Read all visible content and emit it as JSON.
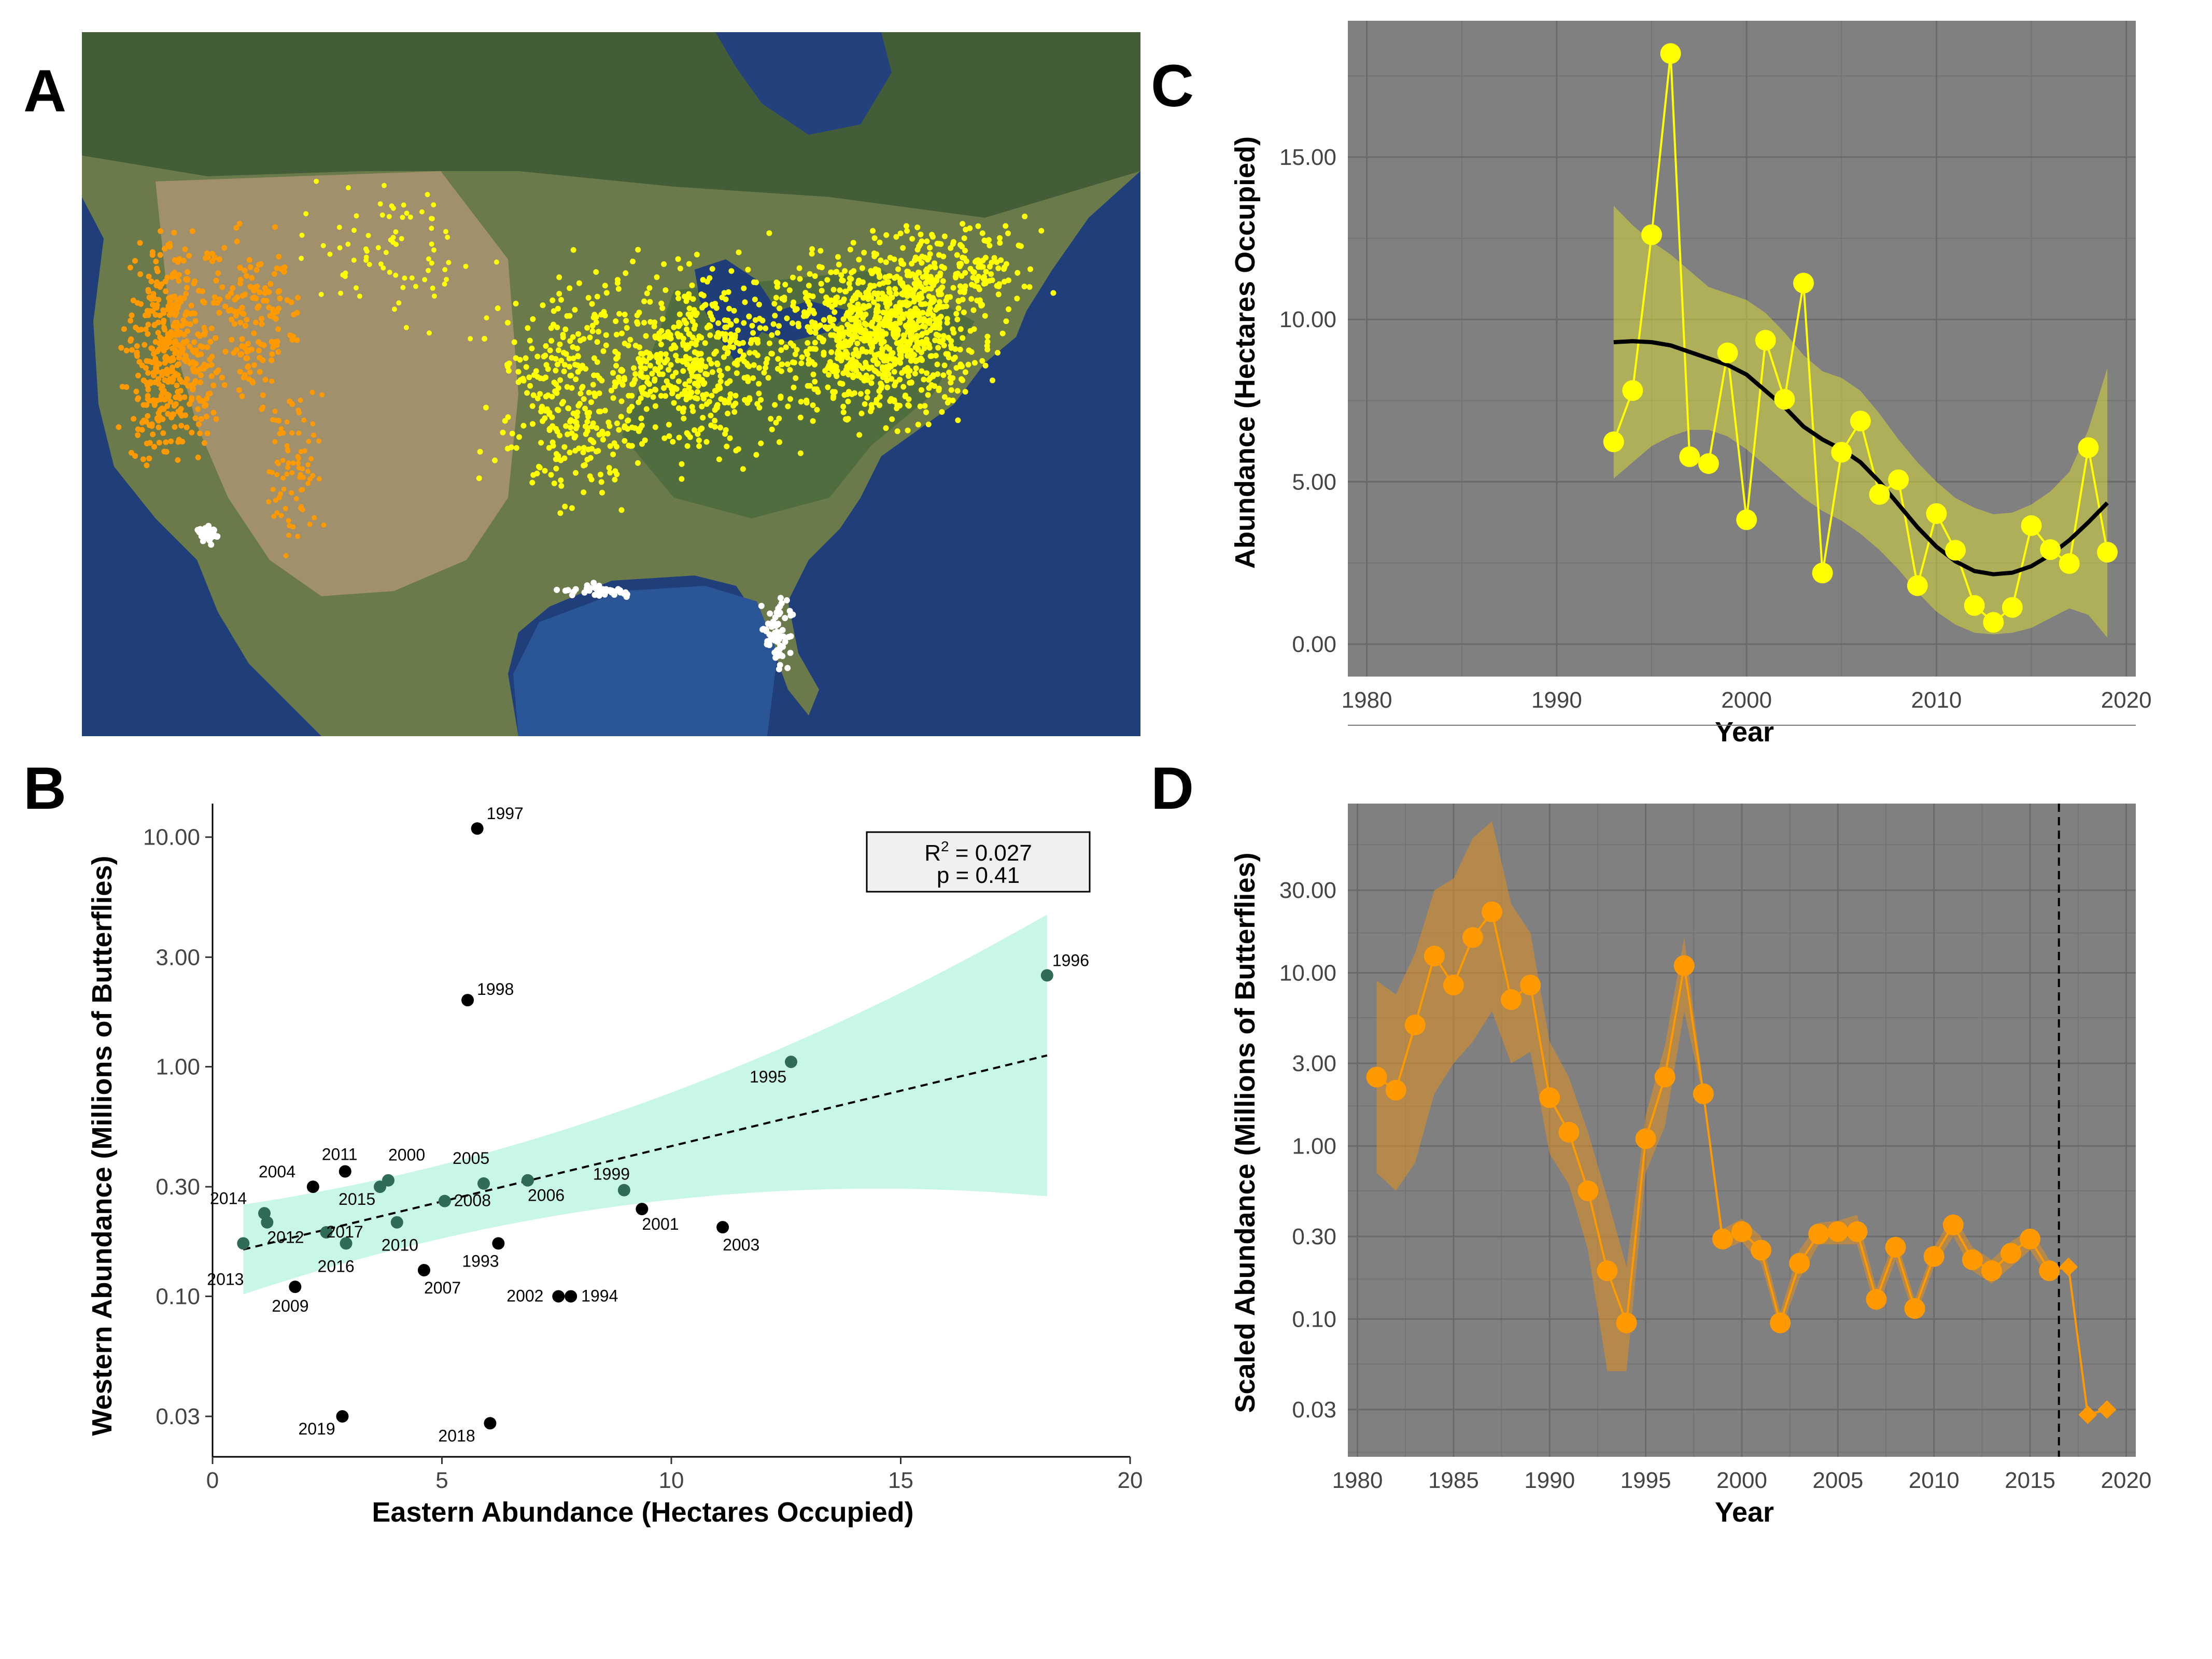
{
  "panels": {
    "a": {
      "letter": "A",
      "colors": {
        "western": "#ff9900",
        "eastern": "#ffff00",
        "coastal": "#ffffff"
      }
    },
    "b": {
      "letter": "B"
    },
    "c": {
      "letter": "C"
    },
    "d": {
      "letter": "D"
    }
  },
  "chart_data": [
    {
      "panel": "B",
      "type": "scatter",
      "xlabel": "Eastern Abundance (Hectares Occupied)",
      "ylabel": "Western Abundance (Millions of Butterflies)",
      "x_ticks": [
        0,
        5,
        10,
        15,
        20
      ],
      "y_ticks": [
        "10.00",
        "3.00",
        "1.00",
        "0.30",
        "0.10",
        "0.03"
      ],
      "y_scale": "log",
      "xlim": [
        0,
        20
      ],
      "ylim": [
        0.02,
        14
      ],
      "grid": false,
      "stats": {
        "r2_label": "R",
        "r2_sup": "2",
        "r2_value": " = 0.027",
        "p": "p = 0.41"
      },
      "fit": {
        "type": "linear",
        "x": [
          0.67,
          18.19
        ],
        "y": [
          0.16,
          1.12
        ]
      },
      "ci_color": "#c8f7e8",
      "points": [
        {
          "year": "1993",
          "x": 6.23,
          "y": 0.17
        },
        {
          "year": "1994",
          "x": 7.81,
          "y": 0.1
        },
        {
          "year": "1995",
          "x": 12.61,
          "y": 1.05
        },
        {
          "year": "1996",
          "x": 18.19,
          "y": 2.5
        },
        {
          "year": "1997",
          "x": 5.77,
          "y": 10.9
        },
        {
          "year": "1998",
          "x": 5.56,
          "y": 1.95
        },
        {
          "year": "1999",
          "x": 8.97,
          "y": 0.29
        },
        {
          "year": "2000",
          "x": 3.83,
          "y": 0.32
        },
        {
          "year": "2001",
          "x": 9.36,
          "y": 0.24
        },
        {
          "year": "2002",
          "x": 7.54,
          "y": 0.1
        },
        {
          "year": "2003",
          "x": 11.12,
          "y": 0.2
        },
        {
          "year": "2004",
          "x": 2.19,
          "y": 0.3
        },
        {
          "year": "2005",
          "x": 5.91,
          "y": 0.31
        },
        {
          "year": "2006",
          "x": 6.87,
          "y": 0.32
        },
        {
          "year": "2007",
          "x": 4.61,
          "y": 0.13
        },
        {
          "year": "2008",
          "x": 5.06,
          "y": 0.26
        },
        {
          "year": "2009",
          "x": 1.8,
          "y": 0.11
        },
        {
          "year": "2010",
          "x": 4.02,
          "y": 0.21
        },
        {
          "year": "2011",
          "x": 2.89,
          "y": 0.35
        },
        {
          "year": "2012",
          "x": 1.19,
          "y": 0.21
        },
        {
          "year": "2013",
          "x": 0.67,
          "y": 0.17
        },
        {
          "year": "2014",
          "x": 1.13,
          "y": 0.23
        },
        {
          "year": "2015",
          "x": 3.65,
          "y": 0.3
        },
        {
          "year": "2016",
          "x": 2.91,
          "y": 0.17
        },
        {
          "year": "2017",
          "x": 2.48,
          "y": 0.19
        },
        {
          "year": "2018",
          "x": 6.05,
          "y": 0.028
        },
        {
          "year": "2019",
          "x": 2.83,
          "y": 0.03
        }
      ]
    },
    {
      "panel": "C",
      "type": "line",
      "xlabel": "Year",
      "ylabel": "Abundance (Hectares Occupied)",
      "x_ticks": [
        1980,
        1990,
        2000,
        2010,
        2020
      ],
      "y_ticks": [
        "0.00",
        "5.00",
        "10.00",
        "15.00"
      ],
      "xlim": [
        1979,
        2020.5
      ],
      "ylim": [
        -1,
        19.2
      ],
      "background": "#808080",
      "series_color": "#ffff00",
      "x": [
        1993,
        1994,
        1995,
        1996,
        1997,
        1998,
        1999,
        2000,
        2001,
        2002,
        2003,
        2004,
        2005,
        2006,
        2007,
        2008,
        2009,
        2010,
        2011,
        2012,
        2013,
        2014,
        2015,
        2016,
        2017,
        2018,
        2019
      ],
      "y": [
        6.23,
        7.81,
        12.61,
        18.19,
        5.77,
        5.56,
        8.97,
        3.83,
        9.36,
        7.54,
        11.12,
        2.19,
        5.91,
        6.87,
        4.61,
        5.06,
        1.8,
        4.02,
        2.89,
        1.19,
        0.67,
        1.13,
        3.65,
        2.91,
        2.48,
        6.05,
        2.83
      ],
      "trend": {
        "x": [
          1993,
          1994,
          1995,
          1996,
          1997,
          1998,
          1999,
          2000,
          2001,
          2002,
          2003,
          2004,
          2005,
          2006,
          2007,
          2008,
          2009,
          2010,
          2011,
          2012,
          2013,
          2014,
          2015,
          2016,
          2017,
          2018,
          2019
        ],
        "y": [
          9.3,
          9.33,
          9.3,
          9.2,
          9.0,
          8.8,
          8.6,
          8.3,
          7.8,
          7.3,
          6.7,
          6.3,
          6.0,
          5.6,
          5.0,
          4.3,
          3.6,
          3.0,
          2.55,
          2.25,
          2.15,
          2.2,
          2.4,
          2.75,
          3.2,
          3.75,
          4.35
        ],
        "lower": [
          5.1,
          5.6,
          6.1,
          6.4,
          6.6,
          6.6,
          6.4,
          6.0,
          5.5,
          5.0,
          4.5,
          4.1,
          3.8,
          3.4,
          2.9,
          2.3,
          1.6,
          1.0,
          0.6,
          0.35,
          0.3,
          0.35,
          0.5,
          0.8,
          1.1,
          0.9,
          0.2
        ],
        "upper": [
          13.5,
          12.9,
          12.4,
          12.0,
          11.5,
          11.0,
          10.8,
          10.6,
          10.2,
          9.6,
          8.9,
          8.4,
          8.2,
          7.8,
          7.1,
          6.3,
          5.6,
          5.0,
          4.5,
          4.2,
          4.0,
          4.05,
          4.3,
          4.7,
          5.3,
          6.6,
          8.5
        ]
      }
    },
    {
      "panel": "D",
      "type": "line",
      "xlabel": "Year",
      "ylabel": "Scaled Abundance (Millions of Butterflies)",
      "x_ticks": [
        1980,
        1985,
        1990,
        1995,
        2000,
        2005,
        2010,
        2015,
        2020
      ],
      "y_ticks": [
        "30.00",
        "10.00",
        "3.00",
        "1.00",
        "0.30",
        "0.10",
        "0.03"
      ],
      "y_scale": "log",
      "xlim": [
        1979.5,
        2020.5
      ],
      "ylim": [
        0.016,
        95
      ],
      "background": "#808080",
      "series_color": "#ff9900",
      "vline_x": 2016.5,
      "x": [
        1981,
        1982,
        1983,
        1984,
        1985,
        1986,
        1987,
        1988,
        1989,
        1990,
        1991,
        1992,
        1993,
        1994,
        1995,
        1996,
        1997,
        1998,
        1999,
        2000,
        2001,
        2002,
        2003,
        2004,
        2005,
        2006,
        2007,
        2008,
        2009,
        2010,
        2011,
        2012,
        2013,
        2014,
        2015,
        2016
      ],
      "y": [
        2.5,
        2.1,
        5.0,
        12.5,
        8.5,
        16.0,
        22.5,
        7.0,
        8.5,
        1.9,
        1.2,
        0.55,
        0.19,
        0.095,
        1.1,
        2.5,
        11.0,
        2.0,
        0.29,
        0.32,
        0.25,
        0.095,
        0.21,
        0.31,
        0.32,
        0.32,
        0.13,
        0.26,
        0.115,
        0.23,
        0.35,
        0.22,
        0.19,
        0.24,
        0.29,
        0.19
      ],
      "lower": [
        0.7,
        0.55,
        0.8,
        2.0,
        3.0,
        4.0,
        6.0,
        3.0,
        3.5,
        0.9,
        0.6,
        0.25,
        0.05,
        0.05,
        0.7,
        1.3,
        6.0,
        1.9,
        0.25,
        0.28,
        0.21,
        0.085,
        0.17,
        0.27,
        0.27,
        0.27,
        0.11,
        0.22,
        0.1,
        0.2,
        0.3,
        0.19,
        0.16,
        0.2,
        0.25,
        0.17
      ],
      "upper": [
        9.0,
        7.5,
        13.0,
        30.0,
        35.0,
        60.0,
        75.0,
        25.0,
        17.0,
        4.0,
        2.5,
        1.2,
        0.5,
        0.2,
        1.5,
        3.8,
        16.0,
        2.2,
        0.33,
        0.38,
        0.3,
        0.11,
        0.25,
        0.36,
        0.37,
        0.4,
        0.15,
        0.3,
        0.13,
        0.26,
        0.4,
        0.26,
        0.22,
        0.28,
        0.33,
        0.22
      ],
      "projected": {
        "x": [
          2017,
          2018,
          2019
        ],
        "y": [
          0.2,
          0.028,
          0.03
        ]
      }
    }
  ]
}
